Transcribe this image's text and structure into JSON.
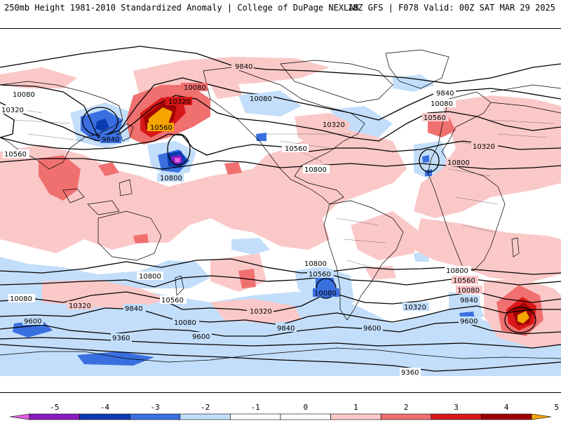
{
  "header": {
    "left_title": "250mb Height 1981-2010 Standardized Anomaly | College of DuPage NEXLAB",
    "right_title": "18Z GFS | F078 Valid: 00Z SAT MAR 29 2025"
  },
  "colors": {
    "neg5": "#e060e0",
    "neg4": "#8a1bc0",
    "neg3": "#0a3bb0",
    "neg2": "#3a6fe0",
    "neg1": "#c3defa",
    "zero": "#ffffff",
    "pos1": "#fbc8c8",
    "pos2": "#f07070",
    "pos3": "#d81818",
    "pos4": "#a00000",
    "pos5": "#f5a400"
  },
  "colorbar": {
    "ticks": [
      "-5",
      "-4",
      "-3",
      "-2",
      "-1",
      "0",
      "1",
      "2",
      "3",
      "4",
      "5"
    ]
  },
  "contour_labels": {
    "l9840a": "9840",
    "l10080a": "10080",
    "l10320a": "10320",
    "l10560a": "10560",
    "l9840b": "9840",
    "l10080b": "10080",
    "l10320b": "10320",
    "l10560b": "10560",
    "l10800a": "10800",
    "l10080c": "10080",
    "l10320c": "10320",
    "l10560c": "10560",
    "l9840c": "9840",
    "l10320d": "10320",
    "l10560d": "10560",
    "l10800b": "10800",
    "l10080d": "10080",
    "l10320e": "10320",
    "l10800c": "10800",
    "l10800d": "10800",
    "l10560e": "10560",
    "l10080e": "10080",
    "l10320f": "10320",
    "l9840d": "9840",
    "l10080f": "10080",
    "l9600a": "9600",
    "l9360a": "9360",
    "l10800e": "10800",
    "l10560f": "10560",
    "l10080g": "10080",
    "l10320g": "10320",
    "l9840e": "9840",
    "l9600b": "9600",
    "l9600c": "9600",
    "l9840f": "9840",
    "l10080h": "10080",
    "l10560g": "10560",
    "l10800f": "10800",
    "l10320h": "10320",
    "l10800g": "10800",
    "l9600d": "9600",
    "l9360b": "9360",
    "l10080i": "10080",
    "l10560h": "10560"
  }
}
